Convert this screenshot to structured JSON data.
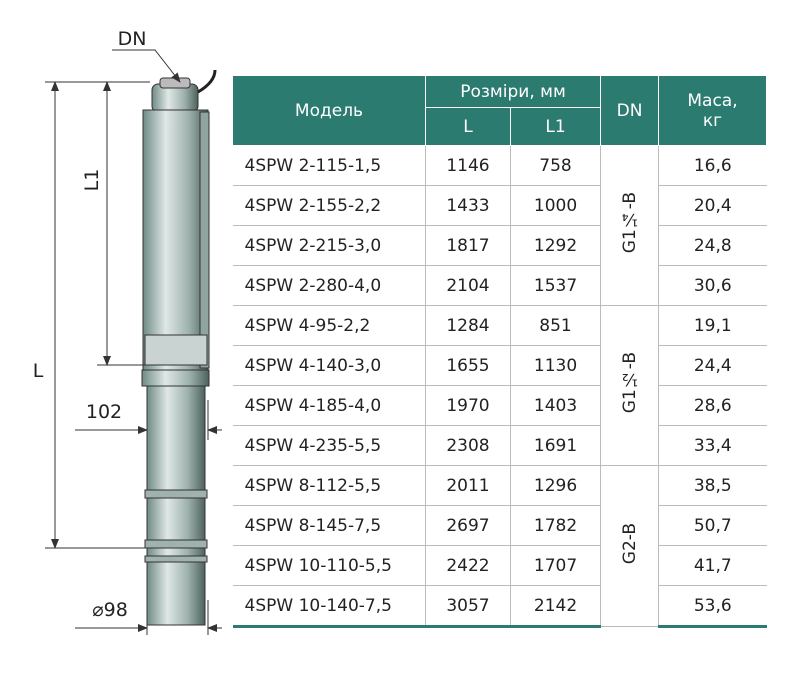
{
  "drawing": {
    "dn": "DN",
    "l1": "L1",
    "l": "L",
    "width": "102",
    "diameter": "⌀98"
  },
  "table": {
    "headers": {
      "model": "Модель",
      "dimensions": "Розміри, мм",
      "l": "L",
      "l1": "L1",
      "dn": "DN",
      "mass": "Маса, кг"
    },
    "rows": [
      [
        "4SPW 2-115-1,5",
        "1146",
        "758",
        "16,6"
      ],
      [
        "4SPW 2-155-2,2",
        "1433",
        "1000",
        "20,4"
      ],
      [
        "4SPW 2-215-3,0",
        "1817",
        "1292",
        "24,8"
      ],
      [
        "4SPW 2-280-4,0",
        "2104",
        "1537",
        "30,6"
      ],
      [
        "4SPW 4-95-2,2",
        "1284",
        "851",
        "19,1"
      ],
      [
        "4SPW 4-140-3,0",
        "1655",
        "1130",
        "24,4"
      ],
      [
        "4SPW 4-185-4,0",
        "1970",
        "1403",
        "28,6"
      ],
      [
        "4SPW 4-235-5,5",
        "2308",
        "1691",
        "33,4"
      ],
      [
        "4SPW 8-112-5,5",
        "2011",
        "1296",
        "38,5"
      ],
      [
        "4SPW 8-145-7,5",
        "2697",
        "1782",
        "50,7"
      ],
      [
        "4SPW 10-110-5,5",
        "2422",
        "1707",
        "41,7"
      ],
      [
        "4SPW 10-140-7,5",
        "3057",
        "2142",
        "53,6"
      ]
    ],
    "dn_groups": [
      "G1¼-B",
      "G1½-B",
      "G2-B"
    ]
  }
}
